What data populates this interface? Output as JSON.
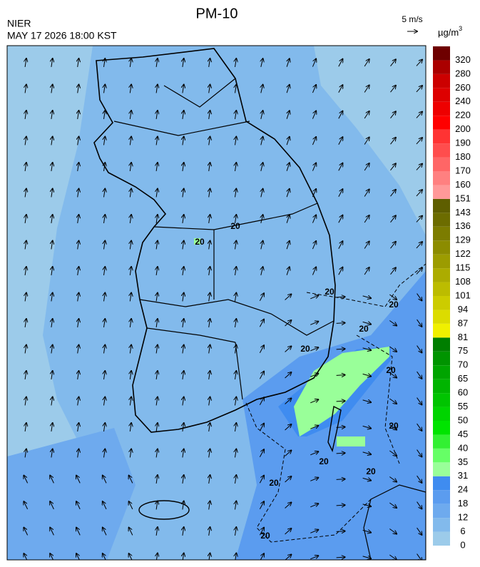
{
  "header": {
    "title": "PM-10",
    "agency": "NIER",
    "datetime": "MAY 17 2026 18:00 KST",
    "wind_scale": "5 m/s",
    "unit": "µg/m",
    "unit_superscript": "3"
  },
  "legend": {
    "levels": [
      0,
      6,
      12,
      18,
      24,
      31,
      35,
      40,
      45,
      50,
      55,
      60,
      65,
      70,
      75,
      81,
      87,
      94,
      101,
      108,
      115,
      122,
      129,
      136,
      143,
      151,
      160,
      170,
      180,
      190,
      200,
      220,
      240,
      260,
      280,
      320
    ],
    "colors": [
      "#9ccbea",
      "#82baec",
      "#6eaaee",
      "#5b9cef",
      "#3f8cf0",
      "#99ff99",
      "#66ff66",
      "#33f033",
      "#00e400",
      "#00d400",
      "#00c400",
      "#00b400",
      "#00a400",
      "#009400",
      "#007e00",
      "#f0f000",
      "#dcdc00",
      "#cccc00",
      "#bcbc00",
      "#acac00",
      "#9c9c00",
      "#8c8c00",
      "#7c7c00",
      "#6c6c00",
      "#5e5e00",
      "#ff9999",
      "#ff8080",
      "#ff6666",
      "#ff4d4d",
      "#ff3333",
      "#ff0000",
      "#ee0000",
      "#dd0000",
      "#cc0000",
      "#aa0000",
      "#6e0000"
    ]
  },
  "contour_labels": [
    "20",
    "20",
    "20",
    "20",
    "20",
    "20",
    "20",
    "20",
    "20",
    "20",
    "20",
    "20"
  ]
}
